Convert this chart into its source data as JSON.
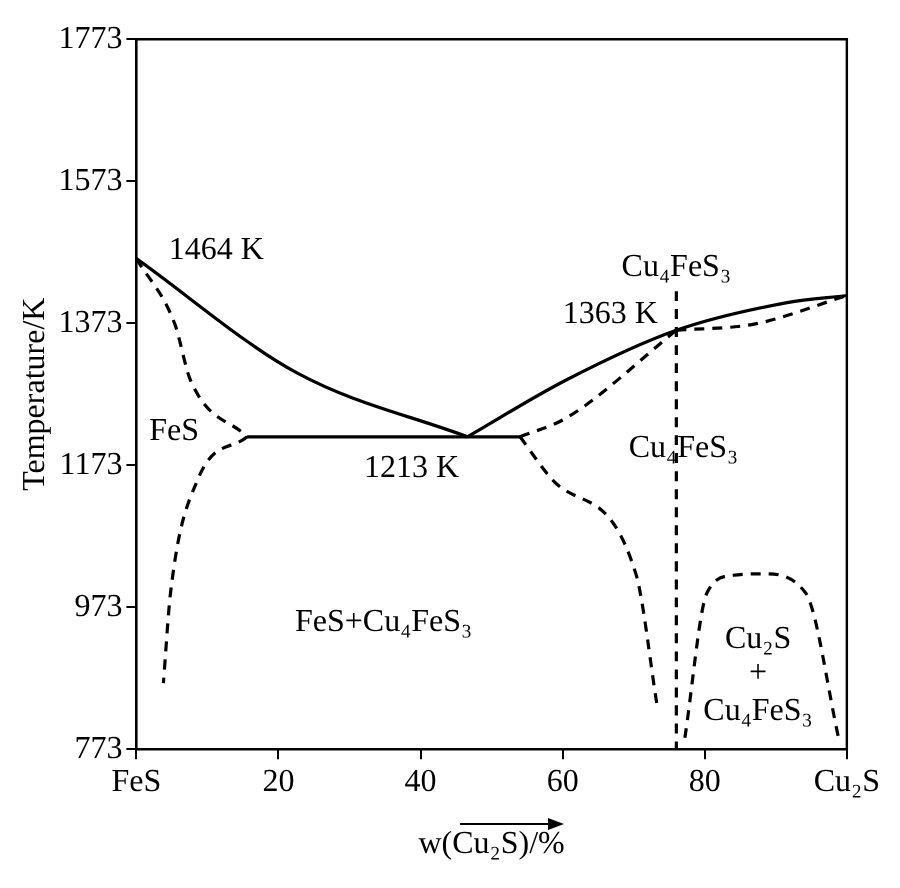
{
  "chart_data": {
    "type": "line",
    "xlabel": "w(Cu₂S)/%",
    "ylabel": "Temperature/K",
    "xlim": [
      0,
      100
    ],
    "xticks": [
      {
        "value": 0,
        "label": "FeS"
      },
      20,
      40,
      60,
      80,
      {
        "value": 100,
        "label": "Cu₂S"
      }
    ],
    "ylim": [
      773,
      1773
    ],
    "yticks": [
      773,
      973,
      1173,
      1373,
      1573,
      1773
    ],
    "legend": false,
    "grid": false,
    "series": [
      {
        "color": "#000000",
        "line_style": "solid",
        "x": [
          0,
          22.6,
          46.6
        ],
        "values": [
          1464,
          1303,
          1213
        ]
      },
      {
        "color": "#000000",
        "line_style": "solid",
        "x": [
          46.6,
          60.5,
          76,
          91.6,
          100
        ],
        "values": [
          1213,
          1293,
          1363,
          1402,
          1412
        ]
      },
      {
        "color": "#000000",
        "line_style": "solid",
        "x": [
          15.6,
          54
        ],
        "values": [
          1213,
          1213
        ]
      },
      {
        "color": "#000000",
        "line_style": "dashed",
        "x": [
          0,
          5.4,
          7.6,
          15.6
        ],
        "values": [
          1464,
          1372,
          1293,
          1213
        ]
      },
      {
        "color": "#000000",
        "line_style": "dashed",
        "x": [
          15.6,
          8.6,
          4.8,
          3.8
        ],
        "values": [
          1213,
          1152,
          993,
          866
        ]
      },
      {
        "color": "#000000",
        "line_style": "dashed",
        "x": [
          54,
          60.6,
          76
        ],
        "values": [
          1213,
          1240,
          1363
        ]
      },
      {
        "color": "#000000",
        "line_style": "dashed",
        "x": [
          76,
          87.1,
          100
        ],
        "values": [
          1363,
          1372,
          1412
        ]
      },
      {
        "color": "#000000",
        "line_style": "dashed",
        "x": [
          54,
          58.6,
          70.3,
          73.3
        ],
        "values": [
          1213,
          1152,
          1020,
          834
        ]
      },
      {
        "color": "#000000",
        "line_style": "dashed",
        "x": [
          76,
          76
        ],
        "values": [
          1418,
          773
        ]
      },
      {
        "color": "#000000",
        "line_style": "dashed",
        "x": [
          77.2,
          80.3,
          84,
          88.2,
          94.2,
          98.9
        ],
        "values": [
          789,
          993,
          1018,
          1020,
          993,
          786
        ]
      }
    ],
    "annotations": [
      {
        "text": "1464 K",
        "x": 0,
        "y": 1464
      },
      {
        "text": "1363 K",
        "x": 76,
        "y": 1363
      },
      {
        "text": "1213 K",
        "x": 46.6,
        "y": 1213
      },
      {
        "text": "Cu₄FeS₃",
        "x": 76,
        "y": 1418
      },
      "FeS",
      {
        "text": "Cu₄FeS₃",
        "x": 77,
        "y": 1197
      },
      "FeS+Cu₄FeS₃",
      "Cu₂S",
      "+",
      "Cu₄FeS₃"
    ]
  }
}
